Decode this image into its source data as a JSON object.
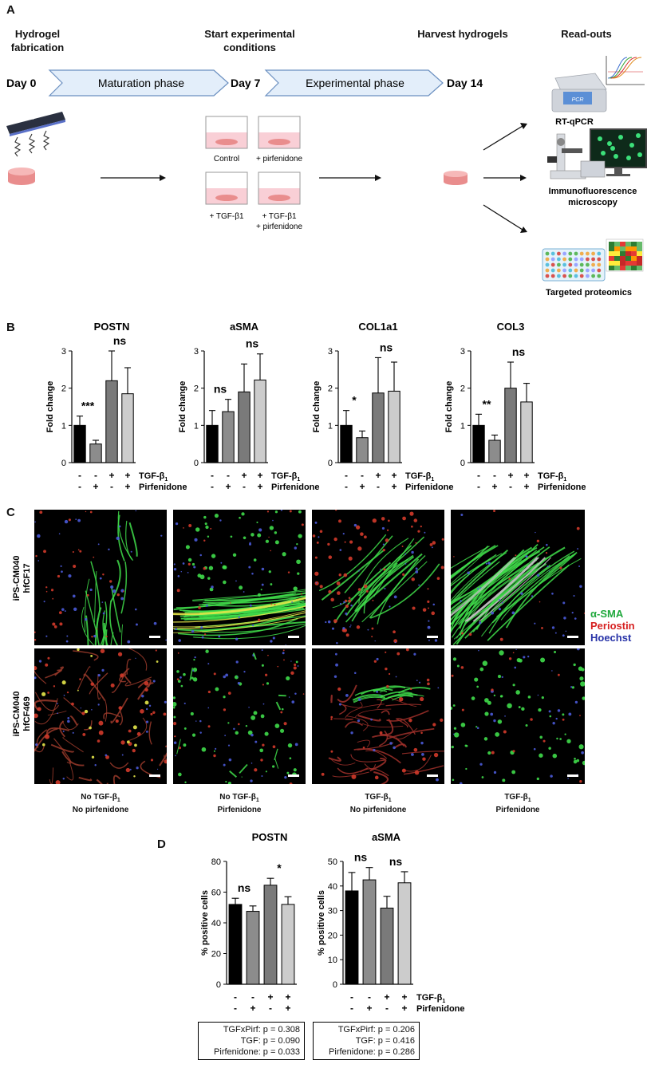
{
  "panelA": {
    "letter": "A",
    "header1": "Hydrogel fabrication",
    "header2": "Start experimental conditions",
    "header3": "Harvest hydrogels",
    "header4": "Read-outs",
    "day0": "Day 0",
    "day7": "Day 7",
    "day14": "Day 14",
    "phase1": "Maturation phase",
    "phase2": "Experimental phase",
    "uv": "UV",
    "wells": [
      "Control",
      "+ pirfenidone",
      "+ TGF-β1",
      "+ TGF-β1",
      "+ pirfenidone"
    ],
    "pcr": "PCR",
    "readout1": "RT-qPCR",
    "readout2a": "Immunofluorescence",
    "readout2b": "microscopy",
    "readout3": "Targeted proteomics",
    "colors": {
      "arrowFill": "#e3eefa",
      "arrowStroke": "#6a8fc0",
      "hydrogel": "#f3a3a3",
      "well": "#f9cfd6"
    }
  },
  "panelB": {
    "letter": "B",
    "ylabel": "Fold change",
    "row1": "TGF-β",
    "row2": "Pirfenidone",
    "tgf_signs": [
      "-",
      "-",
      "+",
      "+"
    ],
    "pirf_signs": [
      "-",
      "+",
      "-",
      "+"
    ],
    "bar_colors": [
      "#000000",
      "#8c8c8c",
      "#7a7a7a",
      "#cccccc"
    ],
    "charts": [
      {
        "title": "POSTN",
        "ylim": [
          0,
          3
        ],
        "yticks": [
          "0",
          "1",
          "2",
          "3"
        ],
        "values": [
          1.0,
          0.5,
          2.2,
          1.85
        ],
        "errors": [
          0.25,
          0.1,
          0.8,
          0.7
        ],
        "sig_left": "***",
        "sig_right": "ns"
      },
      {
        "title": "aSMA",
        "ylim": [
          0,
          3
        ],
        "yticks": [
          "0",
          "1",
          "2",
          "3"
        ],
        "values": [
          1.0,
          1.37,
          1.9,
          2.22
        ],
        "errors": [
          0.4,
          0.33,
          0.75,
          0.7
        ],
        "sig_left": "ns",
        "sig_right": "ns"
      },
      {
        "title": "COL1a1",
        "ylim": [
          0,
          3
        ],
        "yticks": [
          "0",
          "1",
          "2",
          "3"
        ],
        "values": [
          1.0,
          0.67,
          1.87,
          1.92
        ],
        "errors": [
          0.4,
          0.18,
          0.95,
          0.78
        ],
        "sig_left": "*",
        "sig_right": "ns"
      },
      {
        "title": "COL3",
        "ylim": [
          0,
          3
        ],
        "yticks": [
          "0",
          "1",
          "2",
          "3"
        ],
        "values": [
          1.0,
          0.6,
          2.0,
          1.63
        ],
        "errors": [
          0.3,
          0.14,
          0.7,
          0.5
        ],
        "sig_left": "**",
        "sig_right": "ns"
      }
    ]
  },
  "panelC": {
    "letter": "C",
    "row1_label_a": "iPS-CM040",
    "row1_label_b": "hfCF17",
    "row2_label_a": "iPS-CM040",
    "row2_label_b": "hfCF469",
    "legend": [
      {
        "text": "α-SMA",
        "color": "#1fa83c"
      },
      {
        "text": "Periostin",
        "color": "#d62020"
      },
      {
        "text": "Hoechst",
        "color": "#2833a8"
      }
    ],
    "columns": [
      {
        "line1": "No TGF-β",
        "line2": "No pirfenidone"
      },
      {
        "line1": "No TGF-β",
        "line2": "Pirfenidone"
      },
      {
        "line1": "TGF-β",
        "line2": "No pirfenidone"
      },
      {
        "line1": "TGF-β",
        "line2": "Pirfenidone"
      }
    ]
  },
  "panelD": {
    "letter": "D",
    "ylabel": "% positive cells",
    "row1": "TGF-β",
    "row2": "Pirfenidone",
    "tgf_signs": [
      "-",
      "-",
      "+",
      "+"
    ],
    "pirf_signs": [
      "-",
      "+",
      "-",
      "+"
    ],
    "bar_colors": [
      "#000000",
      "#8c8c8c",
      "#7a7a7a",
      "#cccccc"
    ],
    "charts": [
      {
        "title": "POSTN",
        "ylim": [
          0,
          80
        ],
        "yticks": [
          "0",
          "20",
          "40",
          "60",
          "80"
        ],
        "values": [
          52,
          47.5,
          64.5,
          52
        ],
        "errors": [
          4,
          3.5,
          4.5,
          5
        ],
        "sig_left": "ns",
        "sig_right": "*"
      },
      {
        "title": "aSMA",
        "ylim": [
          0,
          50
        ],
        "yticks": [
          "0",
          "10",
          "20",
          "30",
          "40",
          "50"
        ],
        "values": [
          38,
          42.5,
          31,
          41.3
        ],
        "errors": [
          7.5,
          5,
          4.8,
          4.5
        ],
        "sig_left": "ns",
        "sig_right": "ns"
      }
    ],
    "stats": [
      [
        "TGFxPirf: p = 0.308",
        "TGF: p = 0.090",
        "Pirfenidone: p = 0.033"
      ],
      [
        "TGFxPirf: p = 0.206",
        "TGF: p = 0.416",
        "Pirfenidone: p = 0.286"
      ]
    ]
  }
}
